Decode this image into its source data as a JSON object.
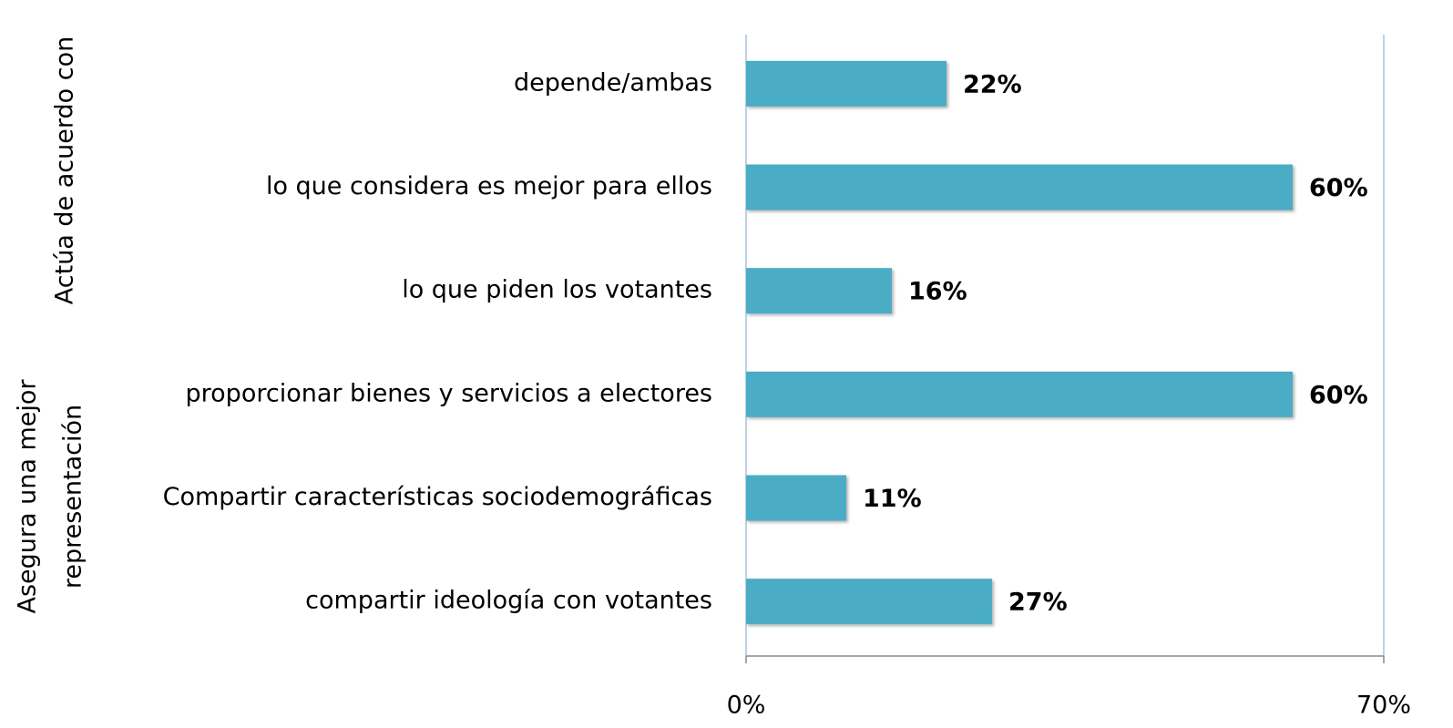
{
  "chart_data": {
    "type": "barh",
    "group_labels": [
      [
        "Actúa de acuerdo con"
      ],
      [
        "Asegura una mejor",
        "representación"
      ]
    ],
    "categories": [
      "depende/ambas",
      "lo que considera es mejor para ellos",
      "lo que piden los votantes",
      "proporcionar bienes y servicios a electores",
      "Compartir características sociodemográficas",
      "compartir ideología con votantes"
    ],
    "values": [
      22,
      60,
      16,
      60,
      11,
      27
    ],
    "value_labels": [
      "22%",
      "60%",
      "16%",
      "60%",
      "11%",
      "27%"
    ],
    "color": "#4bacc6",
    "xlim": [
      0,
      70
    ],
    "xticks": [
      {
        "value": 0,
        "label": "0%"
      },
      {
        "value": 70,
        "label": "70%"
      }
    ],
    "grid": true
  }
}
